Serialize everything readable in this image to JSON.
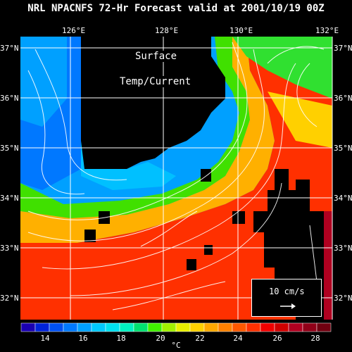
{
  "title": "NRL NPACNFS 72-Hr Forecast valid at 2001/10/19 00Z",
  "map": {
    "label_line1": "Surface",
    "label_line2": "Temp/Current",
    "lon_labels": [
      "126°E",
      "128°E",
      "130°E",
      "132°E"
    ],
    "lat_labels": [
      "37°N",
      "36°N",
      "35°N",
      "34°N",
      "33°N",
      "32°N"
    ],
    "lon_range": [
      125,
      132
    ],
    "lat_range": [
      31.6,
      37.1
    ]
  },
  "scale": {
    "label": "10 cm/s"
  },
  "colorbar": {
    "unit": "°C",
    "tick_labels": [
      "14",
      "16",
      "18",
      "20",
      "22",
      "24",
      "26",
      "28"
    ],
    "colors": [
      "#1a00b0",
      "#0022d8",
      "#0050f0",
      "#0078ff",
      "#00a0ff",
      "#00c8ff",
      "#00e0f0",
      "#00f0c0",
      "#00e070",
      "#40f000",
      "#a0f000",
      "#e8f000",
      "#ffd000",
      "#ffa800",
      "#ff8000",
      "#ff5800",
      "#ff3000",
      "#f00000",
      "#d00000",
      "#b00020",
      "#900018",
      "#700010"
    ]
  },
  "colors": {
    "land": "#000000",
    "text": "#ffffff"
  }
}
